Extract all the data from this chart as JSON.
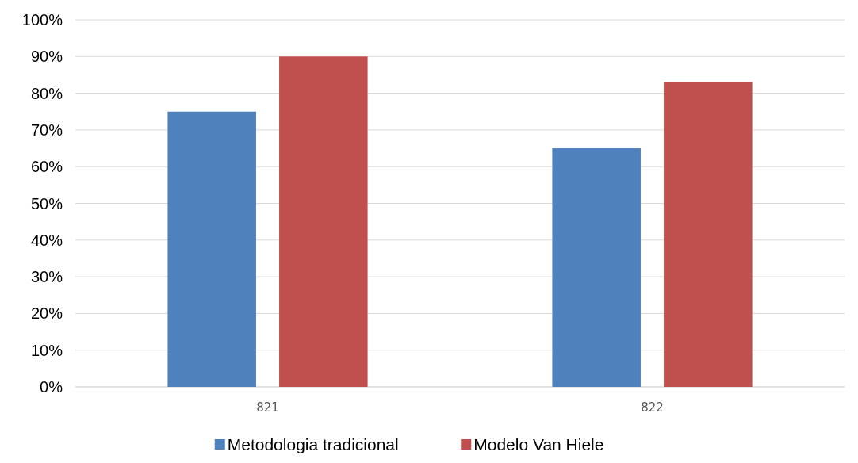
{
  "chart_data": {
    "type": "bar",
    "categories": [
      "821",
      "822"
    ],
    "series": [
      {
        "name": "Metodologia tradicional",
        "color": "#4f81bd",
        "values": [
          75,
          65
        ]
      },
      {
        "name": "Modelo Van Hiele",
        "color": "#c0504d",
        "values": [
          90,
          83
        ]
      }
    ],
    "ylim": [
      0,
      100
    ],
    "yticks": [
      {
        "value": 0,
        "label": "0%"
      },
      {
        "value": 10,
        "label": "10%"
      },
      {
        "value": 20,
        "label": "20%"
      },
      {
        "value": 30,
        "label": "30%"
      },
      {
        "value": 40,
        "label": "40%"
      },
      {
        "value": 50,
        "label": "50%"
      },
      {
        "value": 60,
        "label": "60%"
      },
      {
        "value": 70,
        "label": "70%"
      },
      {
        "value": 80,
        "label": "80%"
      },
      {
        "value": 90,
        "label": "90%"
      },
      {
        "value": 100,
        "label": "100%"
      }
    ],
    "grid": "y",
    "legend": "bottom"
  }
}
